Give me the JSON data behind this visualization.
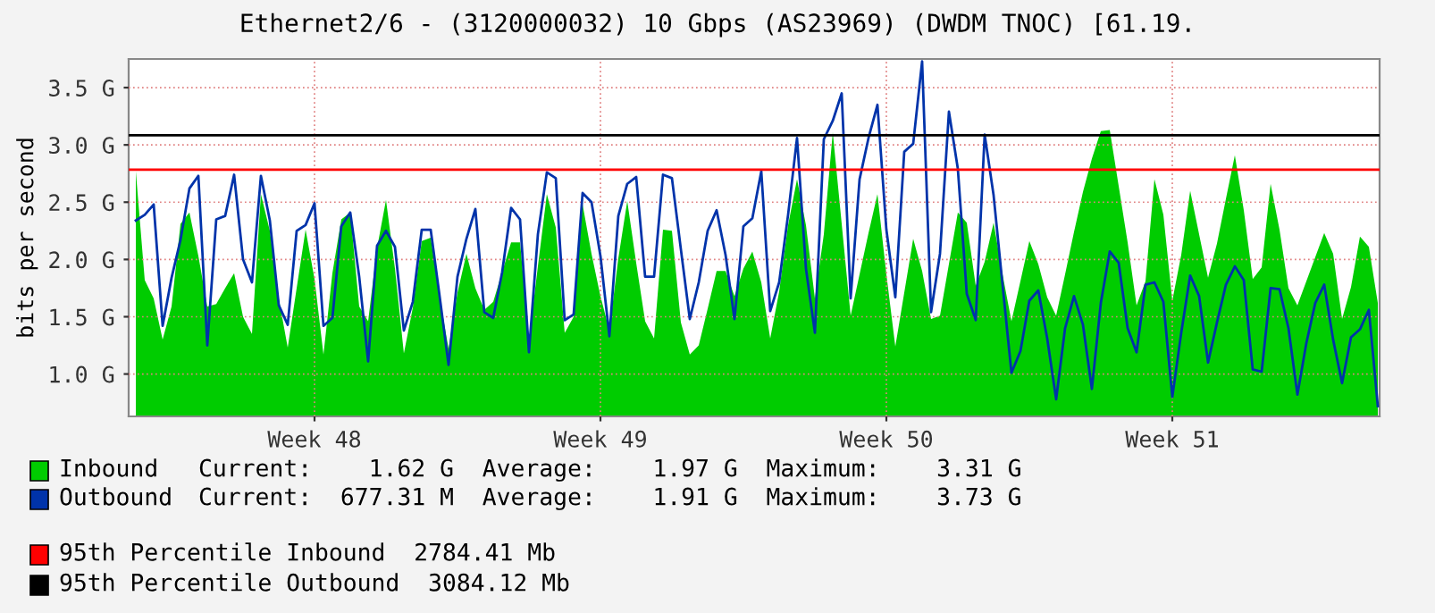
{
  "chart_data": {
    "type": "area",
    "title": "Ethernet2/6 - (3120000032) 10 Gbps (AS23969) (DWDM TNOC) [61.19.",
    "ylabel": "bits per second",
    "categories": [
      null,
      null,
      null,
      null,
      null,
      null,
      null,
      null,
      null,
      null,
      null,
      null,
      null,
      null,
      null,
      null,
      null,
      null,
      null,
      null,
      "Week 48",
      null,
      null,
      null,
      null,
      null,
      null,
      null,
      null,
      null,
      null,
      null,
      null,
      null,
      null,
      null,
      null,
      null,
      null,
      null,
      null,
      null,
      null,
      null,
      null,
      null,
      null,
      null,
      null,
      null,
      null,
      null,
      "Week 49",
      null,
      null,
      null,
      null,
      null,
      null,
      null,
      null,
      null,
      null,
      null,
      null,
      null,
      null,
      null,
      null,
      null,
      null,
      null,
      null,
      null,
      null,
      null,
      null,
      null,
      null,
      null,
      null,
      null,
      null,
      null,
      "Week 50",
      null,
      null,
      null,
      null,
      null,
      null,
      null,
      null,
      null,
      null,
      null,
      null,
      null,
      null,
      null,
      null,
      null,
      null,
      null,
      null,
      null,
      null,
      null,
      null,
      null,
      null,
      null,
      null,
      null,
      null,
      null,
      "Week 51",
      null,
      null,
      null,
      null,
      null,
      null,
      null,
      null,
      null,
      null,
      null,
      null,
      null,
      null,
      null,
      null,
      null,
      null,
      null,
      null,
      null,
      null,
      null
    ],
    "ylim": [
      0.63,
      3.75
    ],
    "yticks": [
      {
        "value": 1.0,
        "label": "1.0 G"
      },
      {
        "value": 1.5,
        "label": "1.5 G"
      },
      {
        "value": 2.0,
        "label": "2.0 G"
      },
      {
        "value": 2.5,
        "label": "2.5 G"
      },
      {
        "value": 3.0,
        "label": "3.0 G"
      },
      {
        "value": 3.5,
        "label": "3.5 G"
      }
    ],
    "grid": true,
    "series": [
      {
        "name": "Inbound",
        "color": "#00cc00",
        "values": [
          2.77,
          1.82,
          1.66,
          1.3,
          1.59,
          2.31,
          2.41,
          2.03,
          1.59,
          1.61,
          1.75,
          1.88,
          1.5,
          1.35,
          2.57,
          2.25,
          1.66,
          1.23,
          1.75,
          2.26,
          1.83,
          1.17,
          1.88,
          2.35,
          2.41,
          1.59,
          1.46,
          2.1,
          2.52,
          1.92,
          1.18,
          1.58,
          2.16,
          2.19,
          1.67,
          1.22,
          1.71,
          2.05,
          1.75,
          1.56,
          1.63,
          1.89,
          2.15,
          2.15,
          1.3,
          1.94,
          2.57,
          2.28,
          1.36,
          1.5,
          2.48,
          2.05,
          1.68,
          1.38,
          2.01,
          2.51,
          1.97,
          1.46,
          1.31,
          2.26,
          2.25,
          1.45,
          1.17,
          1.25,
          1.57,
          1.9,
          1.9,
          1.68,
          1.92,
          2.07,
          1.8,
          1.31,
          1.72,
          2.3,
          2.7,
          2.3,
          1.66,
          2.22,
          3.11,
          2.31,
          1.51,
          1.87,
          2.23,
          2.57,
          1.87,
          1.24,
          1.71,
          2.18,
          1.9,
          1.48,
          1.51,
          1.96,
          2.41,
          2.32,
          1.77,
          1.98,
          2.32,
          1.87,
          1.46,
          1.81,
          2.16,
          1.96,
          1.67,
          1.51,
          1.87,
          2.24,
          2.59,
          2.88,
          3.12,
          3.13,
          2.64,
          2.15,
          1.6,
          1.81,
          2.7,
          2.39,
          1.64,
          2.04,
          2.6,
          2.22,
          1.84,
          2.14,
          2.53,
          2.91,
          2.43,
          1.83,
          1.93,
          2.66,
          2.26,
          1.75,
          1.6,
          1.81,
          2.02,
          2.23,
          2.05,
          1.48,
          1.76,
          2.2,
          2.11,
          1.62
        ]
      },
      {
        "name": "Outbound",
        "type": "line",
        "color": "#0033aa",
        "values": [
          2.34,
          2.39,
          2.48,
          1.42,
          1.84,
          2.17,
          2.62,
          2.73,
          1.25,
          2.35,
          2.38,
          2.74,
          2.0,
          1.8,
          2.73,
          2.34,
          1.6,
          1.43,
          2.25,
          2.3,
          2.49,
          1.42,
          1.49,
          2.29,
          2.41,
          1.85,
          1.11,
          2.12,
          2.25,
          2.11,
          1.38,
          1.63,
          2.26,
          2.26,
          1.68,
          1.08,
          1.85,
          2.18,
          2.44,
          1.54,
          1.49,
          1.89,
          2.45,
          2.35,
          1.19,
          2.22,
          2.76,
          2.71,
          1.47,
          1.52,
          2.58,
          2.5,
          2.03,
          1.33,
          2.38,
          2.66,
          2.72,
          1.85,
          1.85,
          2.74,
          2.71,
          2.09,
          1.48,
          1.8,
          2.25,
          2.43,
          2.04,
          1.48,
          2.29,
          2.36,
          2.77,
          1.55,
          1.8,
          2.39,
          3.06,
          1.92,
          1.36,
          3.05,
          3.21,
          3.45,
          1.66,
          2.7,
          3.06,
          3.35,
          2.26,
          1.67,
          2.94,
          3.01,
          3.73,
          1.54,
          2.05,
          3.29,
          2.79,
          1.7,
          1.47,
          3.09,
          2.56,
          1.78,
          1.01,
          1.2,
          1.64,
          1.73,
          1.31,
          0.78,
          1.4,
          1.68,
          1.43,
          0.87,
          1.62,
          2.07,
          1.97,
          1.4,
          1.19,
          1.78,
          1.8,
          1.63,
          0.8,
          1.36,
          1.86,
          1.68,
          1.1,
          1.45,
          1.78,
          1.94,
          1.82,
          1.04,
          1.02,
          1.75,
          1.74,
          1.4,
          0.82,
          1.27,
          1.62,
          1.78,
          1.3,
          0.92,
          1.32,
          1.39,
          1.56,
          0.72
        ]
      }
    ],
    "ref_lines": [
      {
        "axis": "y",
        "value": 2.78441,
        "label": "95th Percentile Inbound  2784.41 Mb",
        "color": "#ff0000"
      },
      {
        "axis": "y",
        "value": 3.08412,
        "label": "95th Percentile Outbound  3084.12 Mb",
        "color": "#000000"
      }
    ],
    "annotations": [
      "Current:    1.62 G  Average:    1.97 G  Maximum:    3.31 G",
      "Current:  677.31 M  Average:    1.91 G  Maximum:    3.73 G"
    ],
    "legend": "bottom"
  }
}
